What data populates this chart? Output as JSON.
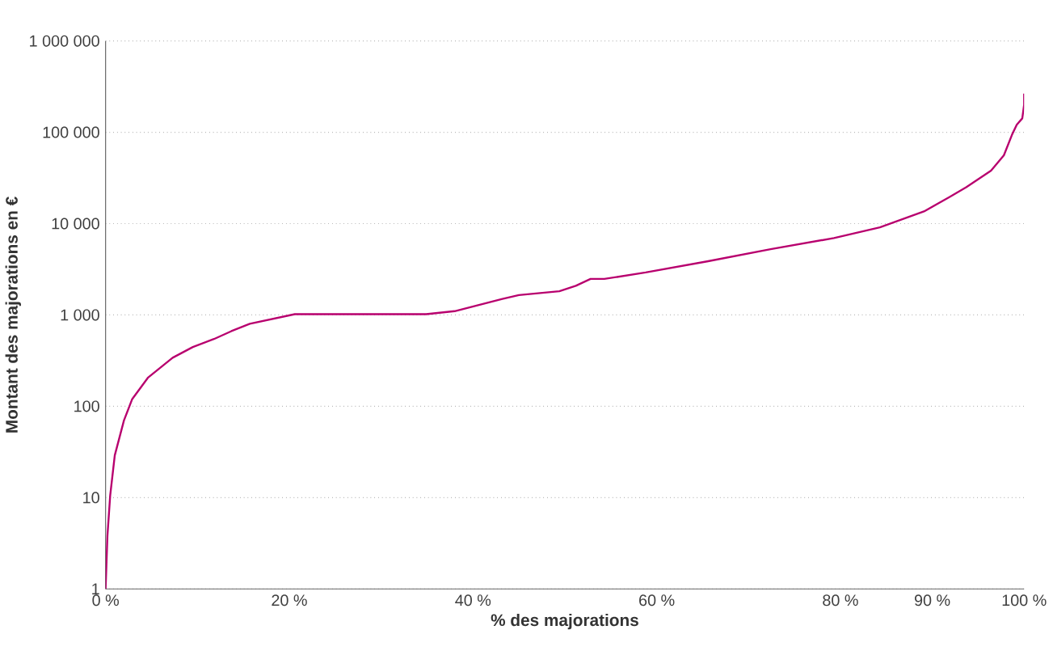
{
  "chart_data": {
    "type": "line",
    "xlabel": "% des majorations",
    "ylabel": "Montant des majorations en €",
    "log": "y",
    "grid": "y",
    "line_style": "solid",
    "color": "#b8006e",
    "x": [
      0,
      0.2,
      0.5,
      1.0,
      2.0,
      2.9,
      4.6,
      7.3,
      9.5,
      11.8,
      13.7,
      15.7,
      20.6,
      27.6,
      34.9,
      38.0,
      43.2,
      45.0,
      49.4,
      51.2,
      52.8,
      54.3,
      58.8,
      65.6,
      72.4,
      79.3,
      84.3,
      89.1,
      91.9,
      93.7,
      96.4,
      97.8,
      98.7,
      99.2,
      99.8,
      100,
      100
    ],
    "values": [
      1,
      3.8,
      10.5,
      29,
      70,
      120,
      205,
      340,
      445,
      545,
      665,
      800,
      1020,
      1020,
      1020,
      1100,
      1500,
      1650,
      1820,
      2090,
      2480,
      2480,
      2920,
      3880,
      5250,
      6950,
      9100,
      13600,
      19600,
      25000,
      38000,
      56000,
      95000,
      121000,
      142000,
      200000,
      265000
    ],
    "xlim": [
      0,
      100
    ],
    "xticks": [
      {
        "value": 0,
        "label": "0 %"
      },
      {
        "value": 20,
        "label": "20 %"
      },
      {
        "value": 40,
        "label": "40 %"
      },
      {
        "value": 60,
        "label": "60 %"
      },
      {
        "value": 80,
        "label": "80 %"
      },
      {
        "value": 90,
        "label": "90 %"
      },
      {
        "value": 100,
        "label": "100 %"
      }
    ],
    "ylim": [
      1,
      1000000
    ],
    "yticks": [
      1,
      10,
      100,
      {
        "value": 1000,
        "label": "1 000"
      },
      {
        "value": 10000,
        "label": "10 000"
      },
      {
        "value": 100000,
        "label": "100 000"
      },
      {
        "value": 1000000,
        "label": "1 000 000"
      }
    ]
  }
}
